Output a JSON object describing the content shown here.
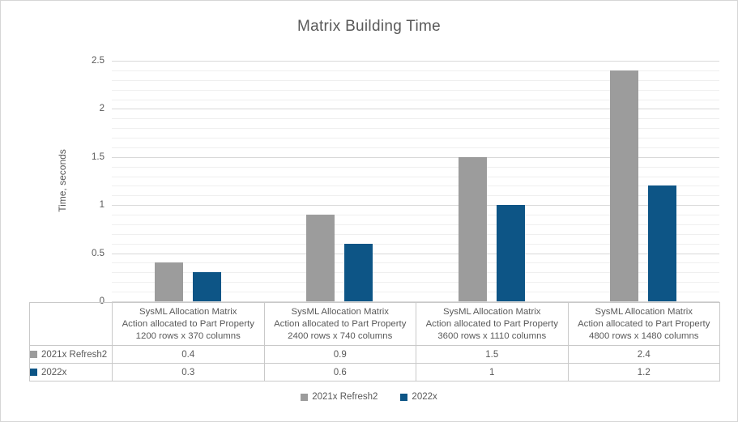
{
  "chart_data": {
    "type": "bar",
    "title": "Matrix Building Time",
    "xlabel": "",
    "ylabel": "Time, seconds",
    "ylim": [
      0,
      2.5
    ],
    "y_major_step": 0.5,
    "y_minor_step": 0.1,
    "y_tick_labels": [
      "0",
      "0.5",
      "1",
      "1.5",
      "2",
      "2.5"
    ],
    "grid": {
      "major": true,
      "minor": true
    },
    "legend_position": "bottom",
    "data_table_shown": true,
    "categories": [
      [
        "SysML Allocation Matrix",
        "Action allocated to Part Property",
        "1200 rows x 370 columns"
      ],
      [
        "SysML Allocation Matrix",
        "Action allocated to Part Property",
        "2400 rows x 740 columns"
      ],
      [
        "SysML Allocation Matrix",
        "Action allocated to Part Property",
        "3600 rows x 1110 columns"
      ],
      [
        "SysML Allocation Matrix",
        "Action allocated to Part Property",
        "4800 rows x 1480 columns"
      ]
    ],
    "series": [
      {
        "name": "2021x Refresh2",
        "color": "#9C9C9C",
        "values": [
          0.4,
          0.9,
          1.5,
          2.4
        ],
        "display_values": [
          "0.4",
          "0.9",
          "1.5",
          "2.4"
        ]
      },
      {
        "name": "2022x",
        "color": "#0D5586",
        "values": [
          0.3,
          0.6,
          1,
          1.2
        ],
        "display_values": [
          "0.3",
          "0.6",
          "1",
          "1.2"
        ]
      }
    ]
  },
  "colors": {
    "background": "#FFFFFF",
    "chart_border": "#D6D6D6",
    "title_text": "#595959",
    "axis_text": "#595959",
    "table_text": "#595959",
    "major_gridline": "#D9D9D9",
    "minor_gridline": "#EFEFEF",
    "table_border": "#C9C9C9"
  }
}
